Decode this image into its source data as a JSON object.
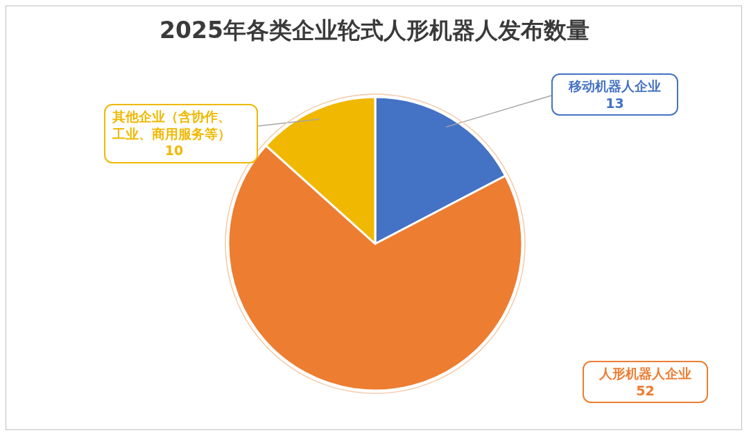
{
  "chart_data": {
    "type": "pie",
    "title": "2025年各类企业轮式人形机器人发布数量",
    "categories": [
      "移动机器人企业",
      "人形机器人企业",
      "其他企业（含协作、工业、商用服务等）"
    ],
    "values": [
      13,
      52,
      10
    ],
    "colors": [
      "#4472c4",
      "#ed7d31",
      "#f0b800"
    ],
    "data_labels": true
  }
}
